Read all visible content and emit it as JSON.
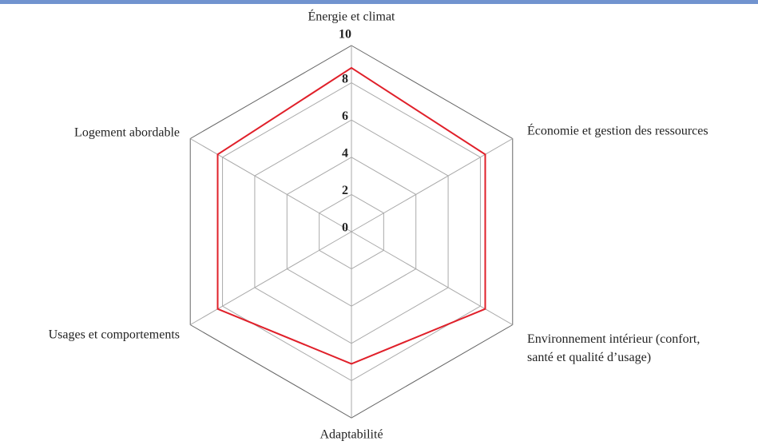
{
  "chart_data": {
    "type": "radar",
    "categories": [
      "Énergie et climat",
      "Économie et gestion des ressources",
      "Environnement intérieur (confort,\nsanté et qualité d’usage)",
      "Adaptabilité",
      "Usages et comportements",
      "Logement abordable"
    ],
    "series": [
      {
        "color": "#e0202a",
        "values": [
          8.8,
          8.3,
          8.3,
          7.1,
          8.3,
          8.3
        ]
      }
    ],
    "rlim": [
      0,
      10
    ],
    "rticks": [
      0,
      2,
      4,
      6,
      8,
      10
    ],
    "grid": true
  }
}
